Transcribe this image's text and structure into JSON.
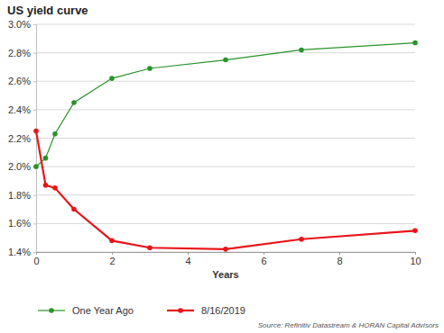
{
  "chart_data": {
    "type": "line",
    "title": "US yield curve",
    "x_label": "Years",
    "source": "Source: Refinitiv Datastream & HORAN Capital Advisors",
    "x": [
      0,
      0.25,
      0.5,
      1,
      2,
      3,
      5,
      7,
      10
    ],
    "series": [
      {
        "name": "One Year Ago",
        "color": "#2a922a",
        "marker": "circle",
        "line_style": "solid",
        "values": [
          2.0,
          2.06,
          2.23,
          2.45,
          2.62,
          2.69,
          2.75,
          2.82,
          2.87
        ]
      },
      {
        "name": "8/16/2019",
        "color": "#e8141a",
        "marker": "circle",
        "line_style": "solid",
        "values": [
          2.25,
          1.87,
          1.85,
          1.7,
          1.48,
          1.43,
          1.42,
          1.49,
          1.55
        ]
      }
    ],
    "xlim": [
      0,
      10
    ],
    "xticks": [
      0,
      2,
      4,
      6,
      8,
      10
    ],
    "ylim": [
      1.4,
      3.0
    ],
    "yticks": [
      {
        "value": 1.4,
        "label": "1.4%"
      },
      {
        "value": 1.6,
        "label": "1.6%"
      },
      {
        "value": 1.8,
        "label": "1.8%"
      },
      {
        "value": 2.0,
        "label": "2.0%"
      },
      {
        "value": 2.2,
        "label": "2.2%"
      },
      {
        "value": 2.4,
        "label": "2.4%"
      },
      {
        "value": 2.6,
        "label": "2.6%"
      },
      {
        "value": 2.8,
        "label": "2.8%"
      },
      {
        "value": 3.0,
        "label": "3.0%"
      }
    ],
    "grid": true,
    "legend": "bottom"
  }
}
